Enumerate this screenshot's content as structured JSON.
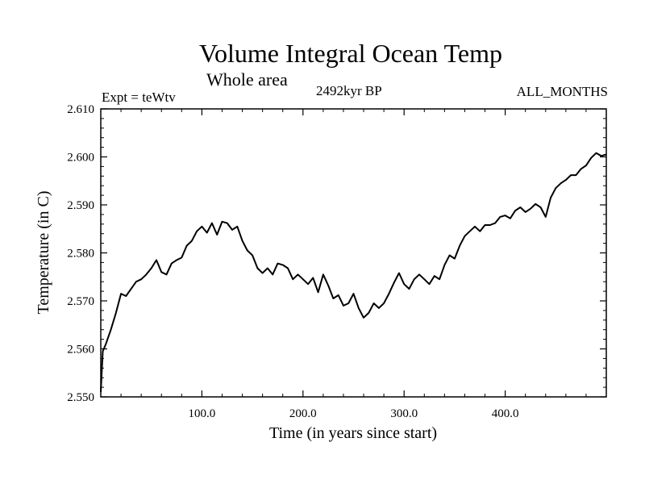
{
  "chart_data": {
    "type": "line",
    "title": "Volume Integral Ocean Temp",
    "subtitle": "Whole area",
    "left_label": "Expt = teWtv",
    "center_label": "2492kyr BP",
    "right_label": "ALL_MONTHS",
    "xlabel": "Time (in years since start)",
    "ylabel": "Temperature (in C)",
    "xlim": [
      0,
      500
    ],
    "ylim": [
      2.55,
      2.61
    ],
    "xticks": [
      100,
      200,
      300,
      400
    ],
    "xtick_labels": [
      "100.0",
      "200.0",
      "300.0",
      "400.0"
    ],
    "yticks": [
      2.55,
      2.56,
      2.57,
      2.58,
      2.59,
      2.6,
      2.61
    ],
    "ytick_labels": [
      "2.550",
      "2.560",
      "2.570",
      "2.580",
      "2.590",
      "2.600",
      "2.610"
    ],
    "grid": false,
    "series": [
      {
        "name": "Volume Integral Ocean Temp",
        "color": "#000000",
        "x": [
          0,
          2,
          5,
          10,
          15,
          20,
          25,
          30,
          35,
          40,
          45,
          50,
          55,
          60,
          65,
          70,
          75,
          80,
          85,
          90,
          95,
          100,
          105,
          110,
          115,
          120,
          125,
          130,
          135,
          140,
          145,
          150,
          155,
          160,
          165,
          170,
          175,
          180,
          185,
          190,
          195,
          200,
          205,
          210,
          215,
          220,
          225,
          230,
          235,
          240,
          245,
          250,
          255,
          260,
          265,
          270,
          275,
          280,
          285,
          290,
          295,
          300,
          305,
          310,
          315,
          320,
          325,
          330,
          335,
          340,
          345,
          350,
          355,
          360,
          365,
          370,
          375,
          380,
          385,
          390,
          395,
          400,
          405,
          410,
          415,
          420,
          425,
          430,
          435,
          440,
          445,
          450,
          455,
          460,
          465,
          470,
          475,
          480,
          485,
          490,
          495,
          500
        ],
        "values": [
          2.551,
          2.5595,
          2.561,
          2.564,
          2.5675,
          2.5715,
          2.571,
          2.5725,
          2.574,
          2.5745,
          2.5755,
          2.5768,
          2.5785,
          2.576,
          2.5755,
          2.5778,
          2.5785,
          2.579,
          2.5815,
          2.5825,
          2.5845,
          2.5855,
          2.5842,
          2.5862,
          2.5838,
          2.5865,
          2.5862,
          2.5848,
          2.5855,
          2.5825,
          2.5805,
          2.5795,
          2.5768,
          2.5758,
          2.5768,
          2.5755,
          2.5778,
          2.5775,
          2.5768,
          2.5745,
          2.5755,
          2.5745,
          2.5735,
          2.5748,
          2.5718,
          2.5755,
          2.5732,
          2.5705,
          2.5712,
          2.569,
          2.5695,
          2.5715,
          2.5685,
          2.5665,
          2.5675,
          2.5695,
          2.5685,
          2.5695,
          2.5715,
          2.5738,
          2.5758,
          2.5735,
          2.5725,
          2.5745,
          2.5755,
          2.5745,
          2.5735,
          2.5752,
          2.5745,
          2.5775,
          2.5795,
          2.5788,
          2.5815,
          2.5835,
          2.5845,
          2.5855,
          2.5845,
          2.5858,
          2.5858,
          2.5862,
          2.5875,
          2.5878,
          2.5872,
          2.5888,
          2.5895,
          2.5885,
          2.5892,
          2.5902,
          2.5895,
          2.5875,
          2.5915,
          2.5935,
          2.5945,
          2.5952,
          2.5962,
          2.5962,
          2.5975,
          2.5982,
          2.5998,
          2.6008,
          2.6002,
          2.6005
        ]
      }
    ]
  }
}
